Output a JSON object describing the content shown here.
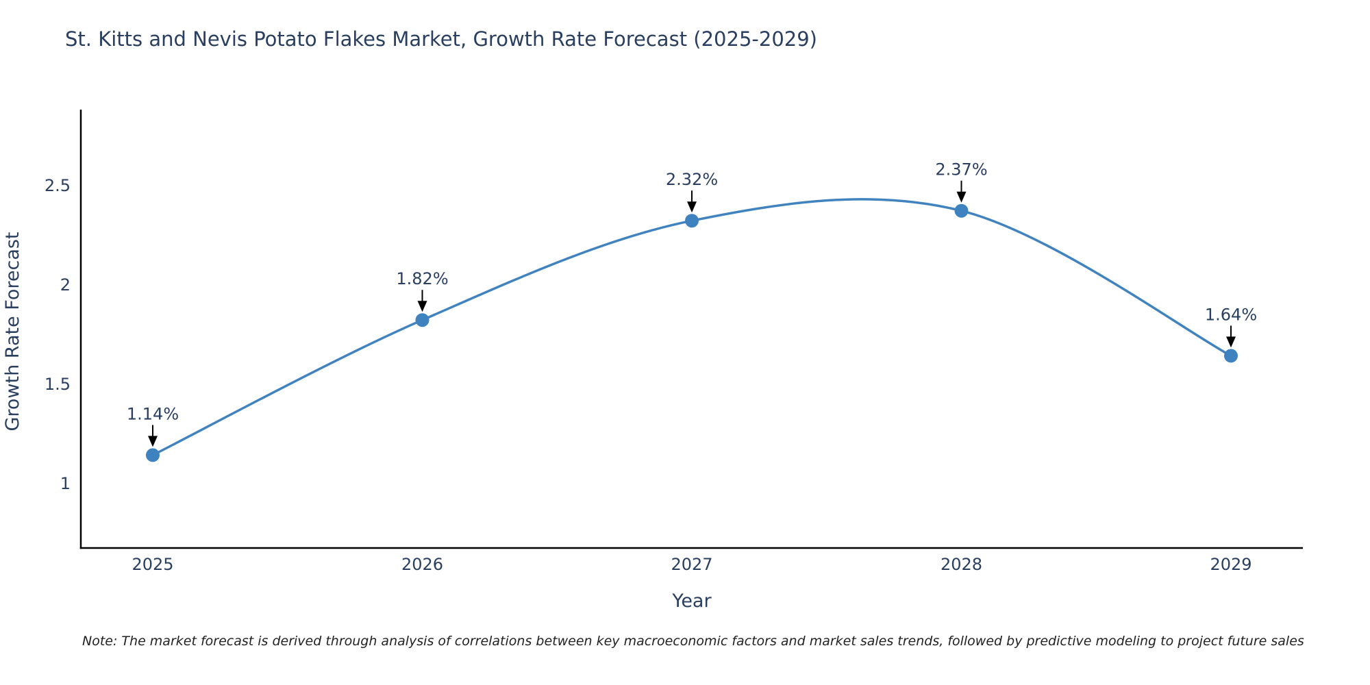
{
  "title": "St. Kitts and Nevis Potato Flakes Market, Growth Rate Forecast (2025-2029)",
  "note": "Note: The market forecast is derived through analysis of correlations between key macroeconomic factors and market sales trends, followed by predictive modeling to project future sales",
  "colors": {
    "line": "#4083bf",
    "marker": "#3e82c0",
    "title_text": "#2a3f5f",
    "axis_text": "#2a3f5f",
    "annotation_text": "#2a3f5f",
    "axis_line": "#000000",
    "arrow": "#000000",
    "background": "#ffffff"
  },
  "chart_data": {
    "type": "line",
    "line_shape": "spline",
    "title": "St. Kitts and Nevis Potato Flakes Market, Growth Rate Forecast (2025-2029)",
    "x": [
      2025,
      2026,
      2027,
      2028,
      2029
    ],
    "y": [
      1.14,
      1.82,
      2.32,
      2.37,
      1.64
    ],
    "point_labels": [
      "1.14%",
      "1.82%",
      "2.32%",
      "2.37%",
      "1.64%"
    ],
    "xlabel": "Year",
    "ylabel": "Growth Rate Forecast",
    "xticklabels": [
      "2025",
      "2026",
      "2027",
      "2028",
      "2029"
    ],
    "yticks": [
      1,
      1.5,
      2,
      2.5
    ],
    "ytick_labels": [
      "1",
      "1.5",
      "2",
      "2.5"
    ],
    "xlim": [
      2024.73,
      2029.27
    ],
    "ylim": [
      0.67,
      2.87
    ],
    "grid": false,
    "legend": false,
    "markers": true,
    "annotations_arrows": true
  }
}
